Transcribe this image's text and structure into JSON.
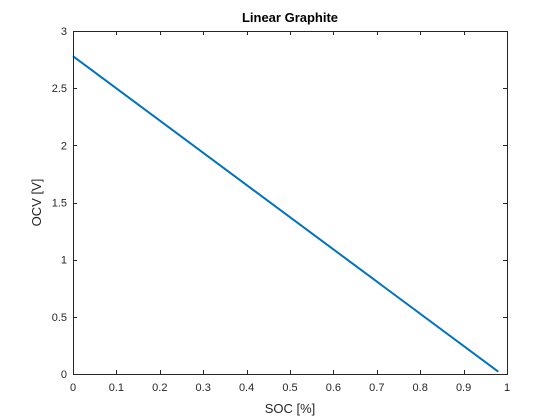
{
  "chart_data": {
    "type": "line",
    "title": "Linear Graphite",
    "xlabel": "SOC [%]",
    "ylabel": "OCV [V]",
    "xlim": [
      0,
      1
    ],
    "ylim": [
      0,
      3
    ],
    "xticks": [
      0,
      0.1,
      0.2,
      0.3,
      0.4,
      0.5,
      0.6,
      0.7,
      0.8,
      0.9,
      1
    ],
    "yticks": [
      0,
      0.5,
      1,
      1.5,
      2,
      2.5,
      3
    ],
    "xtick_labels": [
      "0",
      "0.1",
      "0.2",
      "0.3",
      "0.4",
      "0.5",
      "0.6",
      "0.7",
      "0.8",
      "0.9",
      "1"
    ],
    "ytick_labels": [
      "0",
      "0.5",
      "1",
      "1.5",
      "2",
      "2.5",
      "3"
    ],
    "grid": false,
    "series": [
      {
        "color": "#0072bd",
        "x": [
          0,
          0.98
        ],
        "y": [
          2.78,
          0.02
        ]
      }
    ]
  }
}
